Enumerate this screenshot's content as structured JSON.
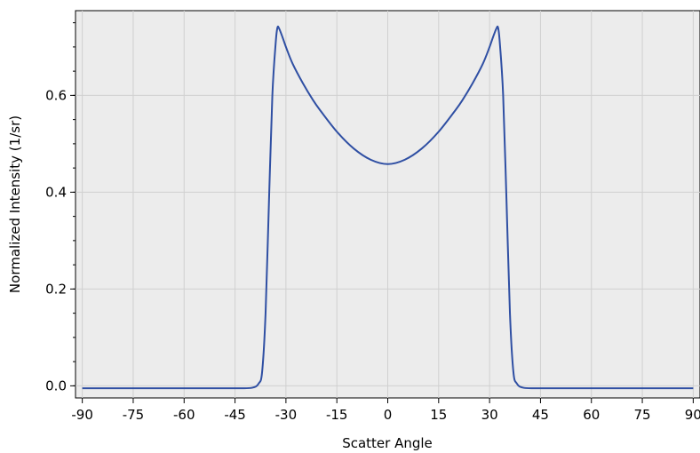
{
  "chart_data": {
    "type": "line",
    "title": "",
    "xlabel": "Scatter Angle",
    "ylabel": "Normalized Intensity (1/sr)",
    "xlim": [
      -92,
      92
    ],
    "ylim": [
      -0.025,
      0.775
    ],
    "xticks": [
      -90,
      -75,
      -60,
      -45,
      -30,
      -15,
      0,
      15,
      30,
      45,
      60,
      75,
      90
    ],
    "xtick_labels": [
      "-90",
      "-75",
      "-60",
      "-45",
      "-30",
      "-15",
      "0",
      "15",
      "30",
      "45",
      "60",
      "75",
      "90"
    ],
    "yticks": [
      0.0,
      0.2,
      0.4,
      0.6
    ],
    "ytick_labels": [
      "0.0",
      "0.2",
      "0.4",
      "0.6"
    ],
    "grid": true,
    "colors": {
      "line": "#2f4fa3",
      "plot_bg": "#ececec",
      "grid": "#d0d0d0"
    },
    "series": [
      {
        "x": [
          -90,
          -60,
          -45,
          -40,
          -38,
          -37,
          -36,
          -35,
          -34,
          -33,
          -32.5,
          -32,
          -31,
          -30,
          -28,
          -25,
          -22,
          -20,
          -15,
          -10,
          -5,
          0,
          5,
          10,
          15,
          20,
          22,
          25,
          28,
          30,
          31,
          32,
          32.5,
          33,
          34,
          35,
          36,
          37,
          38,
          40,
          45,
          60,
          90
        ],
        "y": [
          -0.005,
          -0.005,
          -0.005,
          -0.004,
          0.005,
          0.03,
          0.15,
          0.38,
          0.6,
          0.71,
          0.74,
          0.738,
          0.72,
          0.7,
          0.665,
          0.625,
          0.59,
          0.57,
          0.525,
          0.49,
          0.467,
          0.458,
          0.467,
          0.49,
          0.525,
          0.57,
          0.59,
          0.625,
          0.665,
          0.7,
          0.72,
          0.738,
          0.74,
          0.71,
          0.6,
          0.38,
          0.15,
          0.03,
          0.005,
          -0.004,
          -0.005,
          -0.005,
          -0.005
        ]
      }
    ]
  }
}
